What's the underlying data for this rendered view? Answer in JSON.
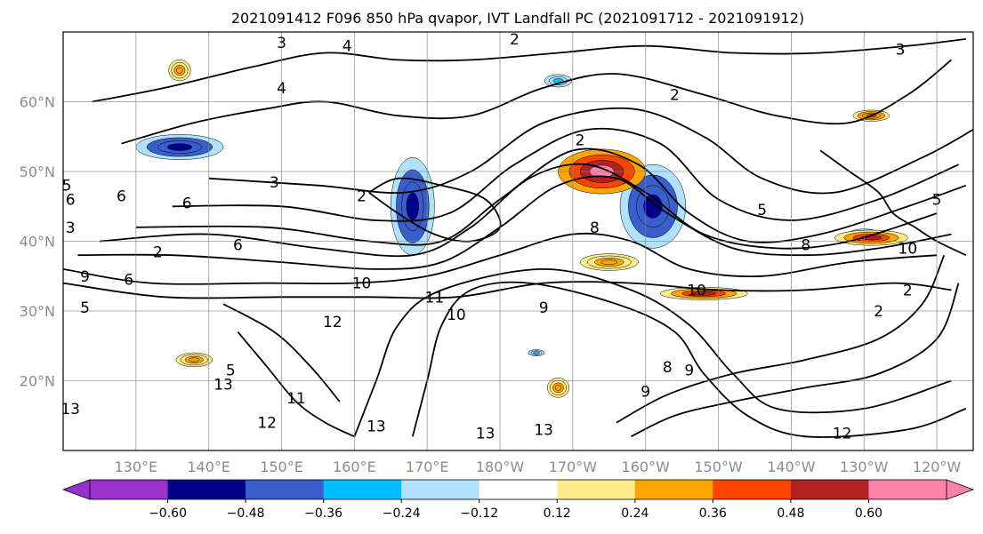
{
  "chart_data": {
    "type": "contour",
    "title": "2021091412 F096 850 hPa qvapor, IVT Landfall PC (2021091712 - 2021091912)",
    "lon_range": [
      120,
      245
    ],
    "lat_range": [
      10,
      70
    ],
    "lon_ticks": [
      {
        "lon": 130,
        "label": "130°E"
      },
      {
        "lon": 140,
        "label": "140°E"
      },
      {
        "lon": 150,
        "label": "150°E"
      },
      {
        "lon": 160,
        "label": "160°E"
      },
      {
        "lon": 170,
        "label": "170°E"
      },
      {
        "lon": 180,
        "label": "180°W"
      },
      {
        "lon": 190,
        "label": "170°W"
      },
      {
        "lon": 200,
        "label": "160°W"
      },
      {
        "lon": 210,
        "label": "150°W"
      },
      {
        "lon": 220,
        "label": "140°W"
      },
      {
        "lon": 230,
        "label": "130°W"
      },
      {
        "lon": 240,
        "label": "120°W"
      }
    ],
    "lat_ticks": [
      {
        "lat": 20,
        "label": "20°N"
      },
      {
        "lat": 30,
        "label": "30°N"
      },
      {
        "lat": 40,
        "label": "40°N"
      },
      {
        "lat": 50,
        "label": "50°N"
      },
      {
        "lat": 60,
        "label": "60°N"
      }
    ],
    "grid": true,
    "colorbar": {
      "placement": "bottom",
      "extend": "both",
      "levels": [
        -0.6,
        -0.48,
        -0.36,
        -0.24,
        -0.12,
        0.12,
        0.24,
        0.36,
        0.48,
        0.6
      ],
      "tick_labels": [
        "−0.60",
        "−0.48",
        "−0.36",
        "−0.24",
        "−0.12",
        "0.12",
        "0.24",
        "0.36",
        "0.48",
        "0.60"
      ],
      "colors": [
        "#9932cc",
        "#00008b",
        "#3a5fcd",
        "#00bfff",
        "#b0e2ff",
        "#ffffff",
        "#ffec8b",
        "#ffa500",
        "#ff4500",
        "#b22222",
        "#ff82ab"
      ]
    },
    "shaded_regions": [
      {
        "sign": "negative",
        "value": -0.6,
        "lon": 136,
        "lat": 53.5,
        "rx": 6,
        "ry": 1.8
      },
      {
        "sign": "negative",
        "value": -0.6,
        "lon": 168,
        "lat": 45,
        "rx": 3,
        "ry": 7
      },
      {
        "sign": "negative",
        "value": -0.6,
        "lon": 201,
        "lat": 45,
        "rx": 4.5,
        "ry": 6
      },
      {
        "sign": "negative",
        "value": -0.3,
        "lon": 188,
        "lat": 63,
        "rx": 2.5,
        "ry": 1.2
      },
      {
        "sign": "negative",
        "value": -0.3,
        "lon": 230,
        "lat": 41,
        "rx": 3,
        "ry": 1
      },
      {
        "sign": "negative",
        "value": -0.3,
        "lon": 185,
        "lat": 24,
        "rx": 1.5,
        "ry": 0.6
      },
      {
        "sign": "positive",
        "value": 0.6,
        "lon": 194,
        "lat": 50,
        "rx": 6,
        "ry": 3.2
      },
      {
        "sign": "positive",
        "value": 0.5,
        "lon": 208,
        "lat": 32.5,
        "rx": 6,
        "ry": 0.9
      },
      {
        "sign": "positive",
        "value": 0.5,
        "lon": 231,
        "lat": 40.5,
        "rx": 5,
        "ry": 1.1
      },
      {
        "sign": "positive",
        "value": 0.4,
        "lon": 231,
        "lat": 58,
        "rx": 2.5,
        "ry": 0.8
      },
      {
        "sign": "positive",
        "value": 0.35,
        "lon": 136,
        "lat": 64.5,
        "rx": 1.5,
        "ry": 1.5
      },
      {
        "sign": "positive",
        "value": 0.35,
        "lon": 138,
        "lat": 23,
        "rx": 2.5,
        "ry": 1
      },
      {
        "sign": "positive",
        "value": 0.3,
        "lon": 195,
        "lat": 37,
        "rx": 4,
        "ry": 1.2
      },
      {
        "sign": "positive",
        "value": 0.3,
        "lon": 188,
        "lat": 19,
        "rx": 1.5,
        "ry": 1.4
      }
    ],
    "contour_labels": [
      {
        "text": "3",
        "lon": 150,
        "lat": 68.5
      },
      {
        "text": "4",
        "lon": 159,
        "lat": 68
      },
      {
        "text": "2",
        "lon": 182,
        "lat": 69
      },
      {
        "text": "3",
        "lon": 235,
        "lat": 67.5
      },
      {
        "text": "4",
        "lon": 150,
        "lat": 62
      },
      {
        "text": "2",
        "lon": 204,
        "lat": 61
      },
      {
        "text": "2",
        "lon": 191,
        "lat": 54.5
      },
      {
        "text": "3",
        "lon": 149,
        "lat": 48.5
      },
      {
        "text": "2",
        "lon": 161,
        "lat": 46.5
      },
      {
        "text": "6",
        "lon": 121,
        "lat": 46
      },
      {
        "text": "6",
        "lon": 128,
        "lat": 46.5
      },
      {
        "text": "6",
        "lon": 137,
        "lat": 45.5
      },
      {
        "text": "5",
        "lon": 216,
        "lat": 44.5
      },
      {
        "text": "5",
        "lon": 120.5,
        "lat": 48
      },
      {
        "text": "3",
        "lon": 121,
        "lat": 42
      },
      {
        "text": "8",
        "lon": 193,
        "lat": 42
      },
      {
        "text": "8",
        "lon": 222,
        "lat": 39.5
      },
      {
        "text": "10",
        "lon": 236,
        "lat": 39
      },
      {
        "text": "5",
        "lon": 240,
        "lat": 46
      },
      {
        "text": "6",
        "lon": 144,
        "lat": 39.5
      },
      {
        "text": "6",
        "lon": 129,
        "lat": 34.5
      },
      {
        "text": "9",
        "lon": 123,
        "lat": 35
      },
      {
        "text": "2",
        "lon": 133,
        "lat": 38.5
      },
      {
        "text": "10",
        "lon": 161,
        "lat": 34
      },
      {
        "text": "11",
        "lon": 171,
        "lat": 32
      },
      {
        "text": "10",
        "lon": 174,
        "lat": 29.5
      },
      {
        "text": "10",
        "lon": 207,
        "lat": 33
      },
      {
        "text": "9",
        "lon": 186,
        "lat": 30.5
      },
      {
        "text": "2",
        "lon": 236,
        "lat": 33
      },
      {
        "text": "2",
        "lon": 232,
        "lat": 30
      },
      {
        "text": "5",
        "lon": 123,
        "lat": 30.5
      },
      {
        "text": "12",
        "lon": 157,
        "lat": 28.5
      },
      {
        "text": "5",
        "lon": 143,
        "lat": 21.5
      },
      {
        "text": "13",
        "lon": 142,
        "lat": 19.5
      },
      {
        "text": "11",
        "lon": 152,
        "lat": 17.5
      },
      {
        "text": "13",
        "lon": 121,
        "lat": 16
      },
      {
        "text": "12",
        "lon": 148,
        "lat": 14
      },
      {
        "text": "13",
        "lon": 163,
        "lat": 13.5
      },
      {
        "text": "13",
        "lon": 178,
        "lat": 12.5
      },
      {
        "text": "13",
        "lon": 186,
        "lat": 13
      },
      {
        "text": "12",
        "lon": 227,
        "lat": 12.5
      },
      {
        "text": "9",
        "lon": 200,
        "lat": 18.5
      },
      {
        "text": "8",
        "lon": 203,
        "lat": 22
      },
      {
        "text": "9",
        "lon": 206,
        "lat": 21.5
      }
    ],
    "jet_contours": [
      {
        "points": [
          [
            122,
            38
          ],
          [
            135,
            38
          ],
          [
            150,
            37
          ],
          [
            163,
            36
          ],
          [
            172,
            37
          ],
          [
            180,
            42
          ],
          [
            188,
            48
          ],
          [
            196,
            49
          ],
          [
            203,
            44
          ],
          [
            212,
            39
          ],
          [
            222,
            38
          ],
          [
            232,
            39
          ],
          [
            242,
            41
          ]
        ]
      },
      {
        "points": [
          [
            125,
            40
          ],
          [
            140,
            41
          ],
          [
            155,
            39
          ],
          [
            168,
            38
          ],
          [
            176,
            42
          ],
          [
            184,
            49
          ],
          [
            192,
            51
          ],
          [
            200,
            47
          ],
          [
            208,
            41
          ],
          [
            218,
            39
          ],
          [
            228,
            40
          ],
          [
            240,
            44
          ]
        ]
      },
      {
        "points": [
          [
            130,
            42
          ],
          [
            148,
            42
          ],
          [
            162,
            40
          ],
          [
            172,
            40
          ],
          [
            180,
            46
          ],
          [
            190,
            53
          ],
          [
            199,
            51
          ],
          [
            206,
            44
          ],
          [
            214,
            40
          ],
          [
            224,
            41
          ],
          [
            236,
            45
          ],
          [
            244,
            48
          ]
        ]
      },
      {
        "points": [
          [
            135,
            45
          ],
          [
            150,
            45
          ],
          [
            163,
            43
          ],
          [
            173,
            44
          ],
          [
            182,
            51
          ],
          [
            192,
            56
          ],
          [
            202,
            54
          ],
          [
            210,
            46
          ],
          [
            220,
            43
          ],
          [
            232,
            46
          ],
          [
            243,
            51
          ]
        ]
      },
      {
        "points": [
          [
            140,
            49
          ],
          [
            155,
            48
          ],
          [
            167,
            47
          ],
          [
            176,
            50
          ],
          [
            186,
            57
          ],
          [
            198,
            59
          ],
          [
            208,
            55
          ],
          [
            216,
            49
          ],
          [
            226,
            47
          ],
          [
            238,
            52
          ],
          [
            245,
            56
          ]
        ]
      },
      {
        "points": [
          [
            120,
            36
          ],
          [
            132,
            34
          ],
          [
            148,
            34
          ],
          [
            160,
            34
          ],
          [
            170,
            35
          ],
          [
            180,
            38
          ],
          [
            190,
            41
          ],
          [
            198,
            40
          ],
          [
            206,
            36
          ],
          [
            216,
            35
          ],
          [
            228,
            37
          ],
          [
            240,
            38
          ]
        ]
      },
      {
        "points": [
          [
            120,
            34
          ],
          [
            134,
            32
          ],
          [
            150,
            32
          ],
          [
            162,
            32
          ],
          [
            174,
            32
          ],
          [
            186,
            34
          ],
          [
            198,
            34
          ],
          [
            210,
            33
          ],
          [
            222,
            33
          ],
          [
            234,
            34
          ],
          [
            242,
            33
          ]
        ]
      },
      {
        "points": [
          [
            168,
            12
          ],
          [
            170,
            20
          ],
          [
            172,
            28
          ],
          [
            176,
            33
          ],
          [
            184,
            34
          ],
          [
            196,
            31
          ],
          [
            204,
            27
          ],
          [
            208,
            21
          ],
          [
            214,
            15
          ],
          [
            222,
            12
          ],
          [
            236,
            13
          ],
          [
            244,
            16
          ]
        ]
      },
      {
        "points": [
          [
            160,
            12
          ],
          [
            163,
            20
          ],
          [
            166,
            28
          ],
          [
            172,
            33
          ],
          [
            186,
            36
          ],
          [
            198,
            33
          ],
          [
            206,
            28
          ],
          [
            212,
            21
          ],
          [
            218,
            16
          ],
          [
            230,
            16
          ],
          [
            242,
            20
          ]
        ]
      },
      {
        "points": [
          [
            198,
            12
          ],
          [
            204,
            15
          ],
          [
            212,
            17
          ],
          [
            222,
            19
          ],
          [
            232,
            21
          ],
          [
            240,
            26
          ],
          [
            243,
            34
          ]
        ]
      },
      {
        "points": [
          [
            196,
            14
          ],
          [
            203,
            18
          ],
          [
            212,
            21
          ],
          [
            222,
            23
          ],
          [
            232,
            26
          ],
          [
            238,
            31
          ],
          [
            241,
            38
          ]
        ]
      },
      {
        "points": [
          [
            144,
            27
          ],
          [
            148,
            22
          ],
          [
            152,
            17
          ],
          [
            156,
            14
          ],
          [
            160,
            12
          ]
        ]
      },
      {
        "points": [
          [
            142,
            31
          ],
          [
            149,
            27
          ],
          [
            154,
            22
          ],
          [
            158,
            17
          ]
        ]
      },
      {
        "points": [
          [
            128,
            54
          ],
          [
            138,
            57
          ],
          [
            148,
            59
          ],
          [
            156,
            60
          ],
          [
            166,
            58
          ],
          [
            176,
            58
          ],
          [
            186,
            62
          ],
          [
            196,
            64
          ],
          [
            208,
            61
          ],
          [
            218,
            58
          ],
          [
            228,
            57
          ],
          [
            236,
            61
          ],
          [
            242,
            66
          ]
        ]
      },
      {
        "points": [
          [
            124,
            60
          ],
          [
            134,
            62
          ],
          [
            146,
            65
          ],
          [
            156,
            67
          ],
          [
            166,
            66
          ],
          [
            176,
            66
          ],
          [
            188,
            67
          ],
          [
            200,
            68
          ],
          [
            212,
            67
          ],
          [
            224,
            67
          ],
          [
            236,
            68
          ],
          [
            244,
            69
          ]
        ]
      },
      {
        "points": [
          [
            162,
            47
          ],
          [
            166,
            44
          ],
          [
            171,
            41
          ],
          [
            176,
            40
          ],
          [
            180,
            42
          ],
          [
            178,
            46
          ],
          [
            172,
            48
          ],
          [
            166,
            49
          ],
          [
            162,
            47
          ]
        ]
      },
      {
        "points": [
          [
            224,
            53
          ],
          [
            228,
            50
          ],
          [
            232,
            47
          ],
          [
            234,
            44
          ],
          [
            237,
            42
          ],
          [
            240,
            40
          ],
          [
            244,
            38
          ]
        ]
      }
    ]
  }
}
